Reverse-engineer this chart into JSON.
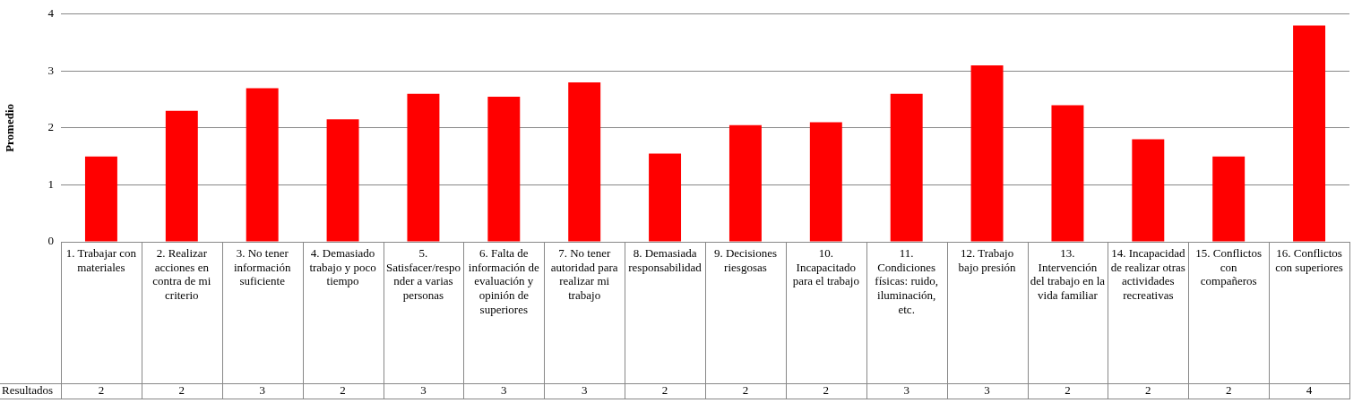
{
  "chart_data": {
    "type": "bar",
    "ylabel": "Promedio",
    "categories": [
      "1. Trabajar con materiales",
      "2. Realizar acciones en contra de mi criterio",
      "3. No tener información suficiente",
      "4. Demasiado trabajo y poco tiempo",
      "5. Satisfacer/responder a varias personas",
      "6. Falta de información de evaluación y opinión de superiores",
      "7. No tener autoridad para realizar mi trabajo",
      "8. Demasiada responsabilidad",
      "9. Decisiones riesgosas",
      "10. Incapacitado para el trabajo",
      "11. Condiciones físicas: ruido, iluminación, etc.",
      "12. Trabajo bajo presión",
      "13. Intervención del trabajo en la vida familiar",
      "14. Incapacidad de realizar otras actividades recreativas",
      "15. Conflictos con compañeros",
      "16. Conflictos con superiores"
    ],
    "series": [
      {
        "name": "Resultados",
        "color": "#ff0000",
        "values": [
          1.5,
          2.3,
          2.7,
          2.15,
          2.6,
          2.55,
          2.8,
          1.55,
          2.05,
          2.1,
          2.6,
          3.1,
          2.4,
          1.8,
          1.5,
          3.8
        ],
        "value_labels": [
          "2",
          "2",
          "3",
          "2",
          "3",
          "3",
          "3",
          "2",
          "2",
          "2",
          "3",
          "3",
          "2",
          "2",
          "2",
          "4"
        ]
      }
    ],
    "ylim": [
      0,
      4
    ],
    "yticks": [
      0,
      1,
      2,
      3,
      4
    ],
    "grid": "y",
    "legend": false
  }
}
